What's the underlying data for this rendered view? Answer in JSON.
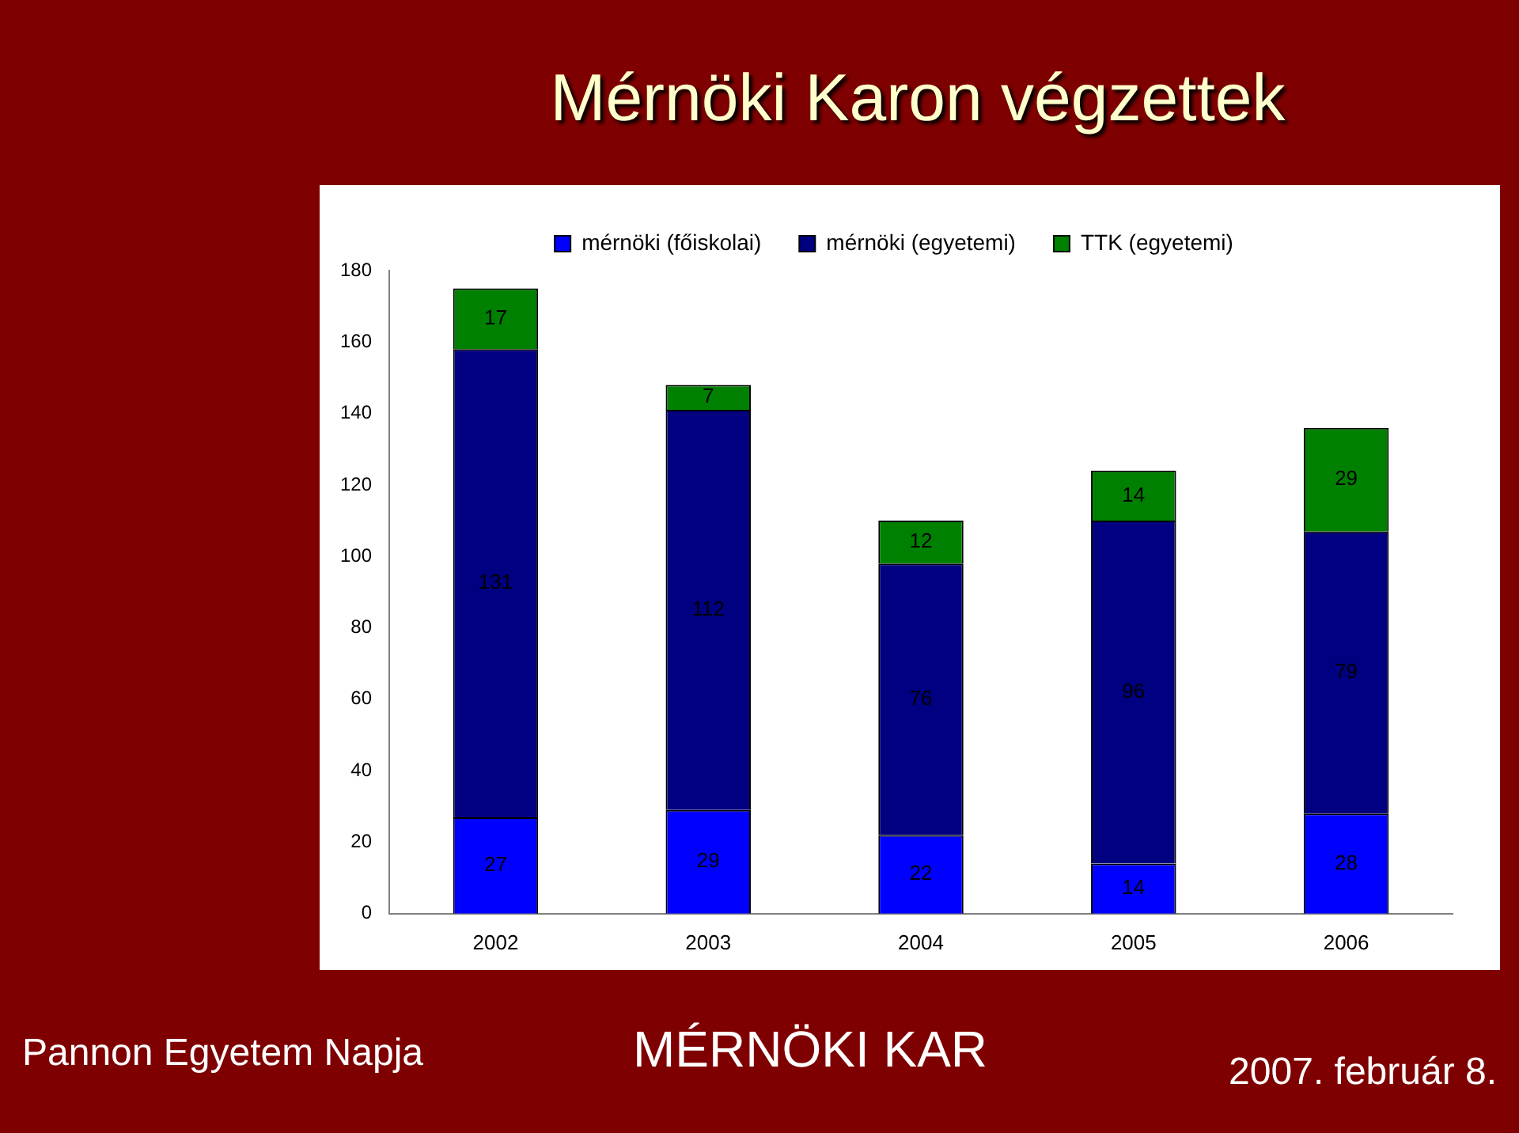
{
  "chart_data": {
    "type": "bar",
    "title": "Mérnöki Karon végzettek",
    "categories": [
      "2002",
      "2003",
      "2004",
      "2005",
      "2006"
    ],
    "series": [
      {
        "name": "mérnöki (főiskolai)",
        "color": "#0000ff",
        "values": [
          27,
          29,
          22,
          14,
          28
        ]
      },
      {
        "name": "mérnöki (egyetemi)",
        "color": "#000080",
        "values": [
          131,
          112,
          76,
          96,
          79
        ]
      },
      {
        "name": "TTK (egyetemi)",
        "color": "#008000",
        "values": [
          17,
          7,
          12,
          14,
          29
        ]
      }
    ],
    "stacked": true,
    "ylim": [
      0,
      180
    ],
    "yticks": [
      0,
      20,
      40,
      60,
      80,
      100,
      120,
      140,
      160,
      180
    ],
    "grid": false,
    "legend": "top",
    "data_labels": true,
    "annotations": [
      "Pannon Egyetem Napja",
      "MÉRNÖKI KAR",
      "2007. február 8."
    ]
  }
}
